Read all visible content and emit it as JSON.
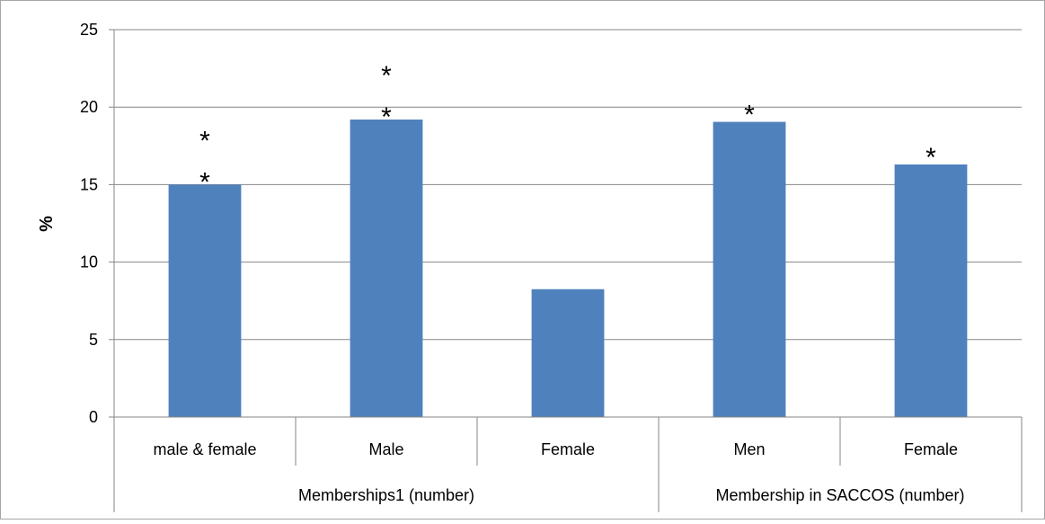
{
  "chart_data": {
    "type": "bar",
    "title": "",
    "xlabel": "",
    "ylabel": "%",
    "ylim": [
      0,
      25
    ],
    "yticks": [
      0,
      5,
      10,
      15,
      20,
      25
    ],
    "grid": true,
    "bar_color": "#4F81BD",
    "categories": [
      "male & female",
      "Male",
      "Female",
      "Men",
      "Female"
    ],
    "values": [
      15.0,
      19.2,
      8.25,
      19.05,
      16.3
    ],
    "annotations": [
      "**",
      "**",
      "",
      "*",
      "*"
    ],
    "groups": [
      {
        "label": "Memberships1 (number)",
        "start": 0,
        "count": 3
      },
      {
        "label": "Membership in SACCOS (number)",
        "start": 3,
        "count": 2
      }
    ]
  }
}
